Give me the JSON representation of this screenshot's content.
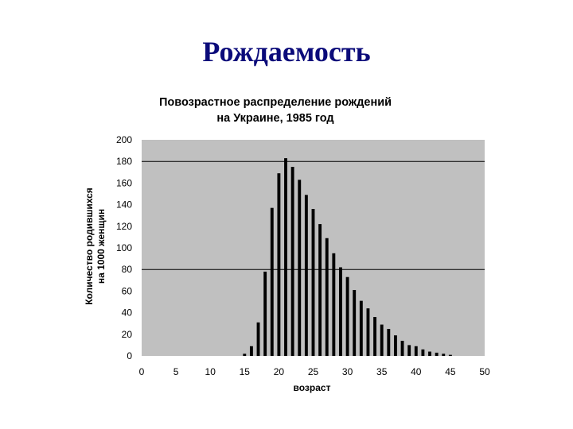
{
  "slide": {
    "title": "Рождаемость"
  },
  "chart_data": {
    "type": "bar",
    "title_lines": [
      "Повозрастное распределение рождений",
      "на Украине, 1985 год"
    ],
    "xlabel": "возраст",
    "ylabel_lines": [
      "Количество родившихся",
      "на 1000 женщин"
    ],
    "xlim": [
      0,
      50
    ],
    "ylim": [
      0,
      200
    ],
    "xticks": [
      0,
      5,
      10,
      15,
      20,
      25,
      30,
      35,
      40,
      45,
      50
    ],
    "yticks": [
      0,
      20,
      40,
      60,
      80,
      100,
      120,
      140,
      160,
      180,
      200
    ],
    "gridlines_y": [
      80,
      180
    ],
    "grid": "partial",
    "legend": "none",
    "colors": {
      "plot_bg": "#c0c0c0",
      "bar": "#000000",
      "grid": "#000000"
    },
    "x": [
      15,
      16,
      17,
      18,
      19,
      20,
      21,
      22,
      23,
      24,
      25,
      26,
      27,
      28,
      29,
      30,
      31,
      32,
      33,
      34,
      35,
      36,
      37,
      38,
      39,
      40,
      41,
      42,
      43,
      44,
      45
    ],
    "values": [
      2,
      9,
      31,
      78,
      137,
      169,
      183,
      175,
      163,
      149,
      136,
      122,
      109,
      95,
      82,
      73,
      61,
      51,
      44,
      36,
      29,
      25,
      19,
      14,
      10,
      9,
      6,
      4,
      3,
      2,
      1
    ]
  }
}
